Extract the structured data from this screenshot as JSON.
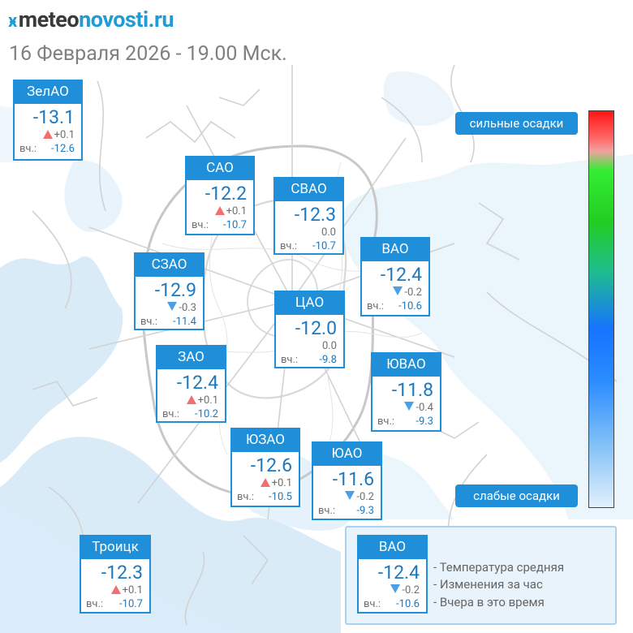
{
  "brand": {
    "prefix": "meteo",
    "suffix": "novosti.ru",
    "accent_color": "#1f9bd7"
  },
  "date_line": "16 Февраля 2026 - 19.00 Мск.",
  "yesterday_label": "вч.:",
  "districts": [
    {
      "id": "zelao",
      "name": "ЗелАО",
      "temp": "-13.1",
      "trend": "up",
      "delta": "+0.1",
      "yesterday": "-12.6"
    },
    {
      "id": "sao",
      "name": "САО",
      "temp": "-12.2",
      "trend": "up",
      "delta": "+0.1",
      "yesterday": "-10.7"
    },
    {
      "id": "svao",
      "name": "СВАО",
      "temp": "-12.3",
      "trend": "none",
      "delta": "0.0",
      "yesterday": "-10.7"
    },
    {
      "id": "vao",
      "name": "ВАО",
      "temp": "-12.4",
      "trend": "down",
      "delta": "-0.2",
      "yesterday": "-10.6"
    },
    {
      "id": "szao",
      "name": "СЗАО",
      "temp": "-12.9",
      "trend": "down",
      "delta": "-0.3",
      "yesterday": "-11.4"
    },
    {
      "id": "cao",
      "name": "ЦАО",
      "temp": "-12.0",
      "trend": "none",
      "delta": "0.0",
      "yesterday": "-9.8"
    },
    {
      "id": "zao",
      "name": "ЗАО",
      "temp": "-12.4",
      "trend": "up",
      "delta": "+0.1",
      "yesterday": "-10.2"
    },
    {
      "id": "yuvao",
      "name": "ЮВАО",
      "temp": "-11.8",
      "trend": "down",
      "delta": "-0.4",
      "yesterday": "-9.3"
    },
    {
      "id": "yuzao",
      "name": "ЮЗАО",
      "temp": "-12.6",
      "trend": "up",
      "delta": "+0.1",
      "yesterday": "-10.5"
    },
    {
      "id": "yuao",
      "name": "ЮАО",
      "temp": "-11.6",
      "trend": "down",
      "delta": "-0.2",
      "yesterday": "-9.3"
    },
    {
      "id": "troitsk",
      "name": "Троицк",
      "temp": "-12.3",
      "trend": "up",
      "delta": "+0.1",
      "yesterday": "-10.7"
    }
  ],
  "precip_scale": {
    "high_label": "сильные осадки",
    "low_label": "слабые осадки"
  },
  "legend": {
    "sample": {
      "name": "ВАО",
      "temp": "-12.4",
      "trend": "down",
      "delta": "-0.2",
      "yesterday": "-10.6"
    },
    "lines": [
      "- Температура средняя",
      "- Изменения за час",
      "- Вчера в это время"
    ]
  },
  "colors": {
    "card_header": "#1e8fd8",
    "temp_text": "#1c78bf",
    "trend_up": "#f07070",
    "trend_down": "#4b9fe6",
    "map_snow": "#d6e9f8"
  },
  "icons": {
    "trend_up": "triangle-up-icon",
    "trend_down": "triangle-down-icon",
    "logo": "logo-mark-icon"
  }
}
